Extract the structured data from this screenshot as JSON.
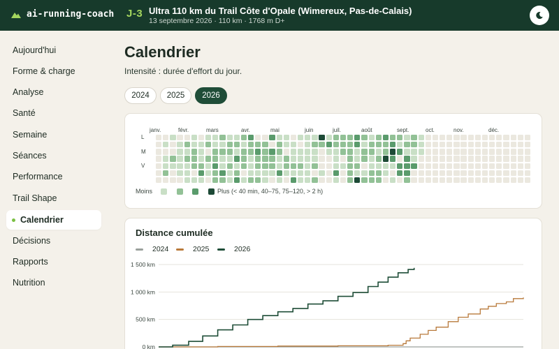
{
  "app": {
    "name": "ai-running-coach",
    "logo_icon": "mountain-icon"
  },
  "race": {
    "countdown": "J-3",
    "title": "Ultra 110 km du Trail Côte d'Opale (Wimereux, Pas-de-Calais)",
    "subtitle": "13 septembre 2026 · 110 km · 1768 m D+"
  },
  "header": {
    "theme_icon": "moon-icon"
  },
  "sidebar": {
    "items": [
      {
        "label": "Aujourd'hui"
      },
      {
        "label": "Forme & charge"
      },
      {
        "label": "Analyse"
      },
      {
        "label": "Santé"
      },
      {
        "label": "Semaine"
      },
      {
        "label": "Séances"
      },
      {
        "label": "Performance"
      },
      {
        "label": "Trail Shape"
      },
      {
        "label": "Calendrier",
        "active": true
      },
      {
        "label": "Décisions"
      },
      {
        "label": "Rapports"
      },
      {
        "label": "Nutrition"
      }
    ]
  },
  "page": {
    "title": "Calendrier",
    "subtitle": "Intensité : durée d'effort du jour.",
    "years": [
      "2024",
      "2025",
      "2026"
    ],
    "selected_year": "2026"
  },
  "heatmap": {
    "months": [
      "janv.",
      "févr.",
      "mars",
      "avr.",
      "mai",
      "juin",
      "juil.",
      "août",
      "sept.",
      "oct.",
      "nov.",
      "déc."
    ],
    "day_labels": [
      "L",
      "M",
      "V"
    ],
    "legend_less": "Moins",
    "legend_more": "Plus (< 40 min, 40–75, 75–120, > 2 h)",
    "colors": [
      "#ebe8df",
      "#c9dfc6",
      "#92c196",
      "#5a9b6c",
      "#1d4a36"
    ],
    "weeks": [
      "0000000",
      "0101120",
      "1002100",
      "0111110",
      "0212111",
      "1122201",
      "0111231",
      "1202110",
      "1122322",
      "2121132",
      "1221211",
      "1213123",
      "2122201",
      "3221112",
      "0232212",
      "0222211",
      "3032210",
      "1221131",
      "1102210",
      "0111213",
      "1011211",
      "1111111",
      "1211202",
      "4200010",
      "1310000",
      "2211131",
      "2220100",
      "2222222",
      "3311214",
      "2122012",
      "1221122",
      "2212122",
      "3224110",
      "2343101",
      "2130330",
      "1213332",
      "2211300",
      "1110000",
      "0000000",
      "0000000",
      "0000000",
      "0000000",
      "0000000",
      "0000000",
      "0000000",
      "0000000",
      "0000000",
      "0000000",
      "0000000",
      "0000000",
      "0000000",
      "0000000",
      "0000000"
    ]
  },
  "distance": {
    "title": "Distance cumulée",
    "series": [
      {
        "name": "2024",
        "color": "#9aa09c"
      },
      {
        "name": "2025",
        "color": "#b8793a"
      },
      {
        "name": "2026",
        "color": "#1e4d37"
      }
    ]
  },
  "chart_data": {
    "type": "line",
    "title": "Distance cumulée",
    "ylabel": "",
    "ylim": [
      0,
      1500
    ],
    "yticks": [
      "0 km",
      "500 km",
      "1 000 km",
      "1 500 km"
    ],
    "ytick_values": [
      0,
      500,
      1000,
      1500
    ],
    "x_unit": "day_of_year",
    "xlim": [
      1,
      365
    ],
    "grid": true,
    "legend": "top-left",
    "series": [
      {
        "name": "2024",
        "x": [
          1,
          365
        ],
        "y": [
          0,
          0
        ]
      },
      {
        "name": "2025",
        "x": [
          1,
          60,
          120,
          180,
          230,
          245,
          248,
          252,
          262,
          270,
          278,
          290,
          300,
          310,
          322,
          330,
          338,
          348,
          355,
          365
        ],
        "y": [
          0,
          8,
          15,
          20,
          30,
          60,
          110,
          160,
          230,
          300,
          360,
          460,
          540,
          600,
          690,
          740,
          790,
          820,
          880,
          900
        ]
      },
      {
        "name": "2026",
        "x": [
          1,
          15,
          31,
          45,
          60,
          75,
          90,
          105,
          120,
          135,
          150,
          165,
          180,
          195,
          210,
          220,
          230,
          240,
          250,
          256
        ],
        "y": [
          0,
          30,
          100,
          200,
          310,
          400,
          500,
          570,
          640,
          700,
          780,
          840,
          920,
          990,
          1100,
          1180,
          1270,
          1350,
          1410,
          1440
        ]
      }
    ]
  }
}
